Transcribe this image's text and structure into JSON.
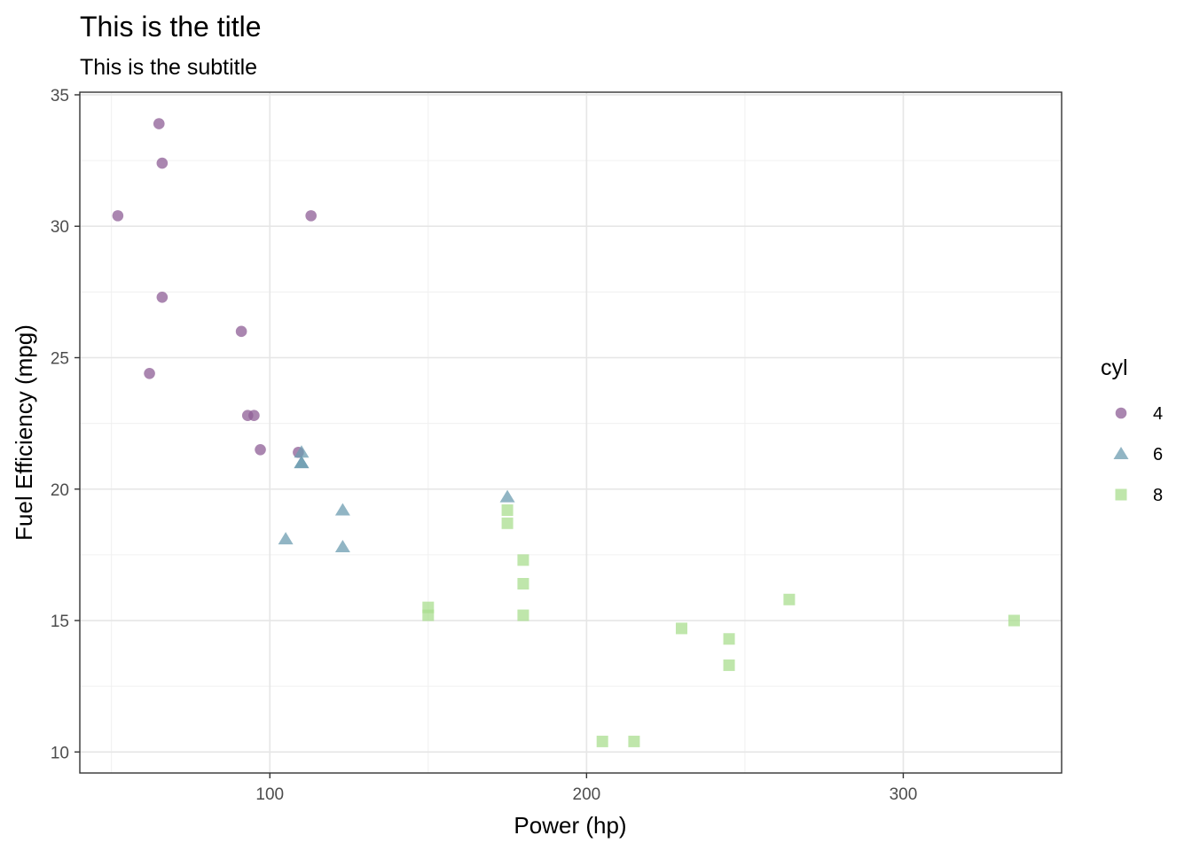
{
  "chart_data": {
    "type": "scatter",
    "title": "This is the title",
    "subtitle": "This is the subtitle",
    "xlabel": "Power (hp)",
    "ylabel": "Fuel Efficiency (mpg)",
    "xlim": [
      40,
      350
    ],
    "ylim": [
      9.2,
      35.1
    ],
    "x_ticks": [
      100,
      200,
      300
    ],
    "y_ticks": [
      10,
      15,
      20,
      25,
      30,
      35
    ],
    "x_minor_ticks": [
      50,
      150,
      250
    ],
    "y_minor_ticks": [
      12.5,
      17.5,
      22.5,
      27.5,
      32.5
    ],
    "grid": true,
    "legend": {
      "title": "cyl",
      "position": "right"
    },
    "series": [
      {
        "name": "4",
        "shape": "circle",
        "color": "#8E5D96",
        "x": [
          52,
          62,
          65,
          66,
          66,
          91,
          93,
          95,
          97,
          109,
          113
        ],
        "y": [
          30.4,
          24.4,
          33.9,
          32.4,
          27.3,
          26.0,
          22.8,
          22.8,
          21.5,
          21.4,
          30.4
        ]
      },
      {
        "name": "6",
        "shape": "triangle",
        "color": "#6C9CB0",
        "x": [
          105,
          110,
          110,
          110,
          123,
          123,
          175
        ],
        "y": [
          18.1,
          21.0,
          21.0,
          21.4,
          19.2,
          17.8,
          19.7
        ]
      },
      {
        "name": "8",
        "shape": "square",
        "color": "#A9DE8F",
        "x": [
          150,
          150,
          175,
          175,
          180,
          180,
          180,
          205,
          215,
          230,
          245,
          245,
          264,
          335
        ],
        "y": [
          15.5,
          15.2,
          18.7,
          19.2,
          16.4,
          17.3,
          15.2,
          10.4,
          10.4,
          14.7,
          13.3,
          14.3,
          15.8,
          15.0
        ]
      }
    ]
  }
}
